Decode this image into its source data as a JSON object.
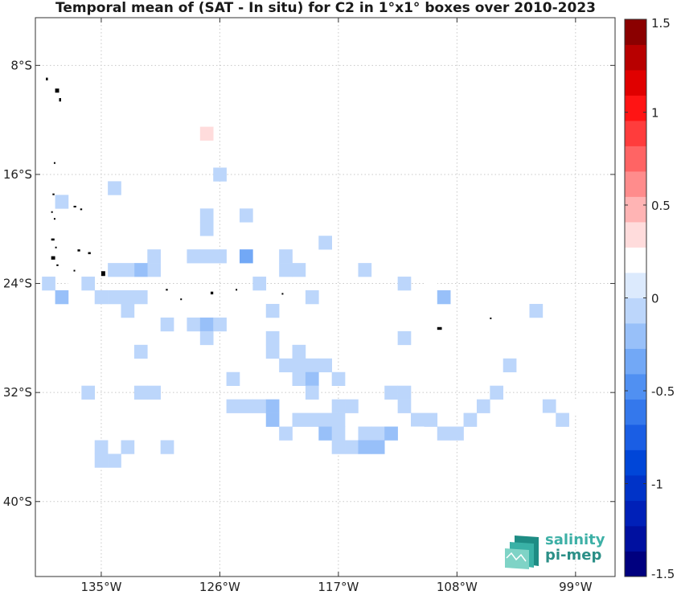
{
  "chart_data": {
    "type": "heatmap",
    "title": "Temporal mean of (SAT - In situ) for C2 in 1°x1° boxes over 2010-2023",
    "x_ticks": [
      "135°W",
      "126°W",
      "117°W",
      "108°W",
      "99°W"
    ],
    "x_tick_values": [
      -135,
      -126,
      -117,
      -108,
      -99
    ],
    "y_ticks": [
      "8°S",
      "16°S",
      "24°S",
      "32°S",
      "40°S"
    ],
    "y_tick_values": [
      -8,
      -16,
      -24,
      -32,
      -40
    ],
    "xlim": [
      -140,
      -96
    ],
    "ylim": [
      -45.5,
      -4.5
    ],
    "colorbar": {
      "range": [
        -1.5,
        1.5
      ],
      "levels": 22,
      "ticks": [
        "1.5",
        "1",
        "0.5",
        "0",
        "-0.5",
        "-1",
        "-1.5"
      ],
      "tick_values": [
        1.5,
        1,
        0.5,
        0,
        -0.5,
        -1,
        -1.5
      ]
    },
    "grid": true,
    "cells": [
      {
        "lon": -128,
        "lat": -13,
        "value": 0.2
      },
      {
        "lon": -127,
        "lat": -13,
        "value": 0.35
      },
      {
        "lon": -125,
        "lat": -14.5,
        "value": 0.25
      },
      {
        "lon": -126,
        "lat": -16,
        "value": -0.08
      },
      {
        "lon": -134,
        "lat": -17,
        "value": -0.08
      },
      {
        "lon": -138,
        "lat": -18,
        "value": -0.08
      },
      {
        "lon": -127,
        "lat": -19,
        "value": -0.08
      },
      {
        "lon": -124,
        "lat": -19,
        "value": -0.08
      },
      {
        "lon": -127,
        "lat": -20,
        "value": -0.08
      },
      {
        "lon": -128,
        "lat": -22,
        "value": -0.08
      },
      {
        "lon": -127,
        "lat": -22,
        "value": -0.08
      },
      {
        "lon": -126,
        "lat": -22,
        "value": -0.08
      },
      {
        "lon": -124,
        "lat": -22,
        "value": -0.35
      },
      {
        "lon": -131,
        "lat": -22,
        "value": -0.08
      },
      {
        "lon": -131,
        "lat": -23,
        "value": -0.08
      },
      {
        "lon": -132,
        "lat": -23,
        "value": -0.25
      },
      {
        "lon": -133,
        "lat": -23,
        "value": -0.08
      },
      {
        "lon": -134,
        "lat": -23,
        "value": -0.08
      },
      {
        "lon": -121,
        "lat": -22,
        "value": -0.08
      },
      {
        "lon": -121,
        "lat": -23,
        "value": -0.08
      },
      {
        "lon": -120,
        "lat": -23,
        "value": -0.08
      },
      {
        "lon": -118,
        "lat": -21,
        "value": -0.08
      },
      {
        "lon": -115,
        "lat": -23,
        "value": -0.08
      },
      {
        "lon": -138,
        "lat": -23,
        "value": 0.25
      },
      {
        "lon": -139,
        "lat": -24,
        "value": -0.08
      },
      {
        "lon": -137,
        "lat": -24,
        "value": 0.25
      },
      {
        "lon": -136,
        "lat": -24,
        "value": -0.08
      },
      {
        "lon": -138,
        "lat": -25,
        "value": -0.25
      },
      {
        "lon": -135,
        "lat": -25,
        "value": -0.08
      },
      {
        "lon": -134,
        "lat": -25,
        "value": -0.08
      },
      {
        "lon": -133,
        "lat": -25,
        "value": -0.08
      },
      {
        "lon": -132,
        "lat": -25,
        "value": -0.08
      },
      {
        "lon": -123,
        "lat": -24,
        "value": -0.08
      },
      {
        "lon": -119,
        "lat": -25,
        "value": -0.08
      },
      {
        "lon": -112,
        "lat": -24,
        "value": -0.08
      },
      {
        "lon": -110,
        "lat": -24,
        "value": 0.25
      },
      {
        "lon": -109,
        "lat": -25,
        "value": -0.25
      },
      {
        "lon": -133,
        "lat": -26,
        "value": -0.08
      },
      {
        "lon": -122,
        "lat": -26,
        "value": -0.08
      },
      {
        "lon": -130,
        "lat": -27,
        "value": -0.08
      },
      {
        "lon": -128,
        "lat": -27,
        "value": -0.08
      },
      {
        "lon": -127,
        "lat": -27,
        "value": -0.2
      },
      {
        "lon": -126,
        "lat": -27,
        "value": -0.08
      },
      {
        "lon": -127,
        "lat": -28,
        "value": -0.08
      },
      {
        "lon": -122,
        "lat": -28,
        "value": -0.08
      },
      {
        "lon": -112,
        "lat": -28,
        "value": -0.08
      },
      {
        "lon": -132,
        "lat": -29,
        "value": -0.08
      },
      {
        "lon": -122,
        "lat": -29,
        "value": -0.08
      },
      {
        "lon": -120,
        "lat": -29,
        "value": -0.08
      },
      {
        "lon": -102,
        "lat": -26,
        "value": -0.08
      },
      {
        "lon": -104,
        "lat": -30,
        "value": -0.08
      },
      {
        "lon": -121,
        "lat": -30,
        "value": -0.08
      },
      {
        "lon": -120,
        "lat": -30,
        "value": -0.08
      },
      {
        "lon": -119,
        "lat": -30,
        "value": -0.08
      },
      {
        "lon": -118,
        "lat": -30,
        "value": -0.08
      },
      {
        "lon": -125,
        "lat": -31,
        "value": -0.08
      },
      {
        "lon": -120,
        "lat": -31,
        "value": -0.08
      },
      {
        "lon": -119,
        "lat": -31,
        "value": -0.25
      },
      {
        "lon": -117,
        "lat": -31,
        "value": -0.08
      },
      {
        "lon": -110,
        "lat": -31,
        "value": 0.25
      },
      {
        "lon": -136,
        "lat": -32,
        "value": -0.08
      },
      {
        "lon": -132,
        "lat": -32,
        "value": -0.08
      },
      {
        "lon": -131,
        "lat": -32,
        "value": -0.08
      },
      {
        "lon": -119,
        "lat": -32,
        "value": -0.08
      },
      {
        "lon": -113,
        "lat": -32,
        "value": -0.08
      },
      {
        "lon": -112,
        "lat": -32,
        "value": -0.08
      },
      {
        "lon": -105,
        "lat": -32,
        "value": -0.08
      },
      {
        "lon": -125,
        "lat": -33,
        "value": -0.08
      },
      {
        "lon": -124,
        "lat": -33,
        "value": -0.08
      },
      {
        "lon": -123,
        "lat": -33,
        "value": -0.08
      },
      {
        "lon": -122,
        "lat": -33,
        "value": -0.2
      },
      {
        "lon": -117,
        "lat": -33,
        "value": -0.08
      },
      {
        "lon": -116,
        "lat": -33,
        "value": -0.08
      },
      {
        "lon": -112,
        "lat": -33,
        "value": -0.08
      },
      {
        "lon": -106,
        "lat": -33,
        "value": -0.08
      },
      {
        "lon": -101,
        "lat": -33,
        "value": -0.08
      },
      {
        "lon": -99,
        "lat": -33,
        "value": 0.25
      },
      {
        "lon": -122,
        "lat": -34,
        "value": -0.2
      },
      {
        "lon": -120,
        "lat": -34,
        "value": -0.08
      },
      {
        "lon": -119,
        "lat": -34,
        "value": -0.08
      },
      {
        "lon": -118,
        "lat": -34,
        "value": -0.08
      },
      {
        "lon": -117,
        "lat": -34,
        "value": -0.08
      },
      {
        "lon": -111,
        "lat": -34,
        "value": -0.08
      },
      {
        "lon": -110,
        "lat": -34,
        "value": -0.08
      },
      {
        "lon": -107,
        "lat": -34,
        "value": -0.08
      },
      {
        "lon": -101,
        "lat": -34,
        "value": 0.2
      },
      {
        "lon": -100,
        "lat": -34,
        "value": -0.08
      },
      {
        "lon": -139,
        "lat": -35,
        "value": 0.25
      },
      {
        "lon": -121,
        "lat": -35,
        "value": -0.08
      },
      {
        "lon": -118,
        "lat": -35,
        "value": -0.25
      },
      {
        "lon": -117,
        "lat": -35,
        "value": -0.08
      },
      {
        "lon": -115,
        "lat": -35,
        "value": -0.08
      },
      {
        "lon": -114,
        "lat": -35,
        "value": -0.08
      },
      {
        "lon": -113,
        "lat": -35,
        "value": -0.25
      },
      {
        "lon": -111,
        "lat": -35,
        "value": 0.25
      },
      {
        "lon": -109,
        "lat": -35,
        "value": -0.08
      },
      {
        "lon": -108,
        "lat": -35,
        "value": -0.08
      },
      {
        "lon": -135,
        "lat": -36,
        "value": -0.08
      },
      {
        "lon": -133,
        "lat": -36,
        "value": -0.08
      },
      {
        "lon": -130,
        "lat": -36,
        "value": -0.08
      },
      {
        "lon": -117,
        "lat": -36,
        "value": -0.08
      },
      {
        "lon": -116,
        "lat": -36,
        "value": -0.08
      },
      {
        "lon": -115,
        "lat": -36,
        "value": -0.2
      },
      {
        "lon": -114,
        "lat": -36,
        "value": -0.2
      },
      {
        "lon": -135,
        "lat": -37,
        "value": -0.08
      },
      {
        "lon": -134,
        "lat": -37,
        "value": -0.08
      }
    ],
    "land": [
      {
        "lon": -139.2,
        "lat": -8.9,
        "w": 0.15,
        "h": 0.2
      },
      {
        "lon": -138.5,
        "lat": -9.7,
        "w": 0.3,
        "h": 0.3
      },
      {
        "lon": -138.2,
        "lat": -10.4,
        "w": 0.15,
        "h": 0.25
      },
      {
        "lon": -138.6,
        "lat": -15.1,
        "w": 0.12,
        "h": 0.12
      },
      {
        "lon": -138.7,
        "lat": -17.4,
        "w": 0.15,
        "h": 0.12
      },
      {
        "lon": -137.1,
        "lat": -18.3,
        "w": 0.2,
        "h": 0.12
      },
      {
        "lon": -136.6,
        "lat": -18.5,
        "w": 0.15,
        "h": 0.12
      },
      {
        "lon": -138.8,
        "lat": -18.7,
        "w": 0.12,
        "h": 0.12
      },
      {
        "lon": -138.6,
        "lat": -19.2,
        "w": 0.12,
        "h": 0.12
      },
      {
        "lon": -138.8,
        "lat": -20.7,
        "w": 0.25,
        "h": 0.15
      },
      {
        "lon": -138.5,
        "lat": -21.3,
        "w": 0.12,
        "h": 0.12
      },
      {
        "lon": -136.8,
        "lat": -21.5,
        "w": 0.2,
        "h": 0.15
      },
      {
        "lon": -136.0,
        "lat": -21.7,
        "w": 0.2,
        "h": 0.15
      },
      {
        "lon": -138.8,
        "lat": -22.0,
        "w": 0.3,
        "h": 0.25
      },
      {
        "lon": -138.4,
        "lat": -22.6,
        "w": 0.15,
        "h": 0.12
      },
      {
        "lon": -135.0,
        "lat": -23.1,
        "w": 0.3,
        "h": 0.35
      },
      {
        "lon": -137.1,
        "lat": -23.0,
        "w": 0.12,
        "h": 0.12
      },
      {
        "lon": -130.1,
        "lat": -24.4,
        "w": 0.15,
        "h": 0.12
      },
      {
        "lon": -126.7,
        "lat": -24.6,
        "w": 0.2,
        "h": 0.2
      },
      {
        "lon": -124.8,
        "lat": -24.4,
        "w": 0.12,
        "h": 0.12
      },
      {
        "lon": -129.0,
        "lat": -25.1,
        "w": 0.12,
        "h": 0.12
      },
      {
        "lon": -121.3,
        "lat": -24.7,
        "w": 0.12,
        "h": 0.12
      },
      {
        "lon": -109.5,
        "lat": -27.2,
        "w": 0.35,
        "h": 0.2
      },
      {
        "lon": -105.5,
        "lat": -26.5,
        "w": 0.12,
        "h": 0.1
      }
    ]
  },
  "logo": {
    "line1": "salinity",
    "line2": "pi-mep"
  }
}
